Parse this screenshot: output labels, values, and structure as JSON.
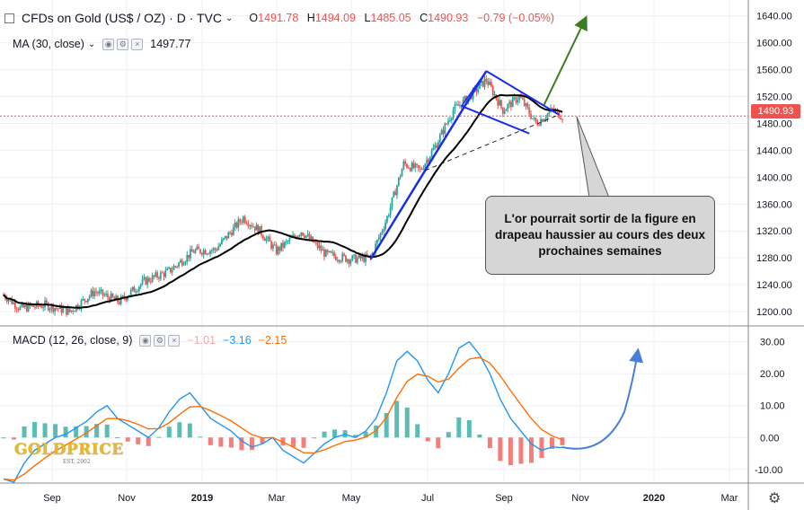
{
  "header": {
    "symbol": "CFDs on Gold (US$ / OZ) · D · TVC",
    "open_label": "O",
    "open": "1491.78",
    "high_label": "H",
    "high": "1494.09",
    "low_label": "L",
    "low": "1485.05",
    "close_label": "C",
    "close": "1490.93",
    "change": "−0.79 (−0.05%)"
  },
  "ma_legend": {
    "label": "MA (30, close)",
    "value": "1497.77"
  },
  "macd_legend": {
    "label": "MACD (12, 26, close, 9)",
    "hist": "−1.01",
    "macd": "−3.16",
    "signal": "−2.15"
  },
  "price_tag": "1490.93",
  "callout": "L'or pourrait sortir de la figure en drapeau haussier au cours des deux prochaines semaines",
  "logo": {
    "text": "GOLDPRICE",
    "sub": "EST. 2002"
  },
  "colors": {
    "up": "#26a69a",
    "down": "#ef5350",
    "ma": "#000000",
    "trend": "#1a2ee8",
    "arrow": "#3a7d1e",
    "macd": "#2196f3",
    "signal": "#ff6d00"
  },
  "chart_data": [
    {
      "type": "candlestick",
      "title": "",
      "y_ticks": [
        1200,
        1240,
        1280,
        1320,
        1360,
        1400,
        1440,
        1480,
        1520,
        1560,
        1600,
        1640
      ],
      "x_ticks": [
        "Sep",
        "Nov",
        "2019",
        "Mar",
        "May",
        "Jul",
        "Sep",
        "Nov",
        "2020",
        "Mar"
      ],
      "ylim": [
        1180,
        1645
      ],
      "last_price": 1490.93,
      "anchor_points": [
        {
          "t": 0,
          "y": 1225
        },
        {
          "t": 10,
          "y": 1205
        },
        {
          "t": 25,
          "y": 1210
        },
        {
          "t": 40,
          "y": 1200
        },
        {
          "t": 55,
          "y": 1230
        },
        {
          "t": 70,
          "y": 1215
        },
        {
          "t": 85,
          "y": 1245
        },
        {
          "t": 100,
          "y": 1260
        },
        {
          "t": 115,
          "y": 1290
        },
        {
          "t": 128,
          "y": 1292
        },
        {
          "t": 145,
          "y": 1340
        },
        {
          "t": 155,
          "y": 1320
        },
        {
          "t": 165,
          "y": 1290
        },
        {
          "t": 180,
          "y": 1320
        },
        {
          "t": 195,
          "y": 1285
        },
        {
          "t": 210,
          "y": 1278
        },
        {
          "t": 222,
          "y": 1280
        },
        {
          "t": 232,
          "y": 1340
        },
        {
          "t": 242,
          "y": 1420
        },
        {
          "t": 252,
          "y": 1410
        },
        {
          "t": 262,
          "y": 1450
        },
        {
          "t": 272,
          "y": 1500
        },
        {
          "t": 282,
          "y": 1520
        },
        {
          "t": 292,
          "y": 1545
        },
        {
          "t": 302,
          "y": 1500
        },
        {
          "t": 312,
          "y": 1520
        },
        {
          "t": 322,
          "y": 1480
        },
        {
          "t": 332,
          "y": 1500
        },
        {
          "t": 338,
          "y": 1491
        }
      ],
      "ma": {
        "name": "MA (30, close)",
        "last": 1497.77
      }
    },
    {
      "type": "macd",
      "y_ticks": [
        -10,
        0,
        10,
        20,
        30
      ],
      "ylim": [
        -14,
        33
      ],
      "series": [
        {
          "name": "MACD",
          "last": -3.16
        },
        {
          "name": "Signal",
          "last": -2.15
        },
        {
          "name": "Histogram",
          "last": -1.01
        }
      ]
    }
  ]
}
